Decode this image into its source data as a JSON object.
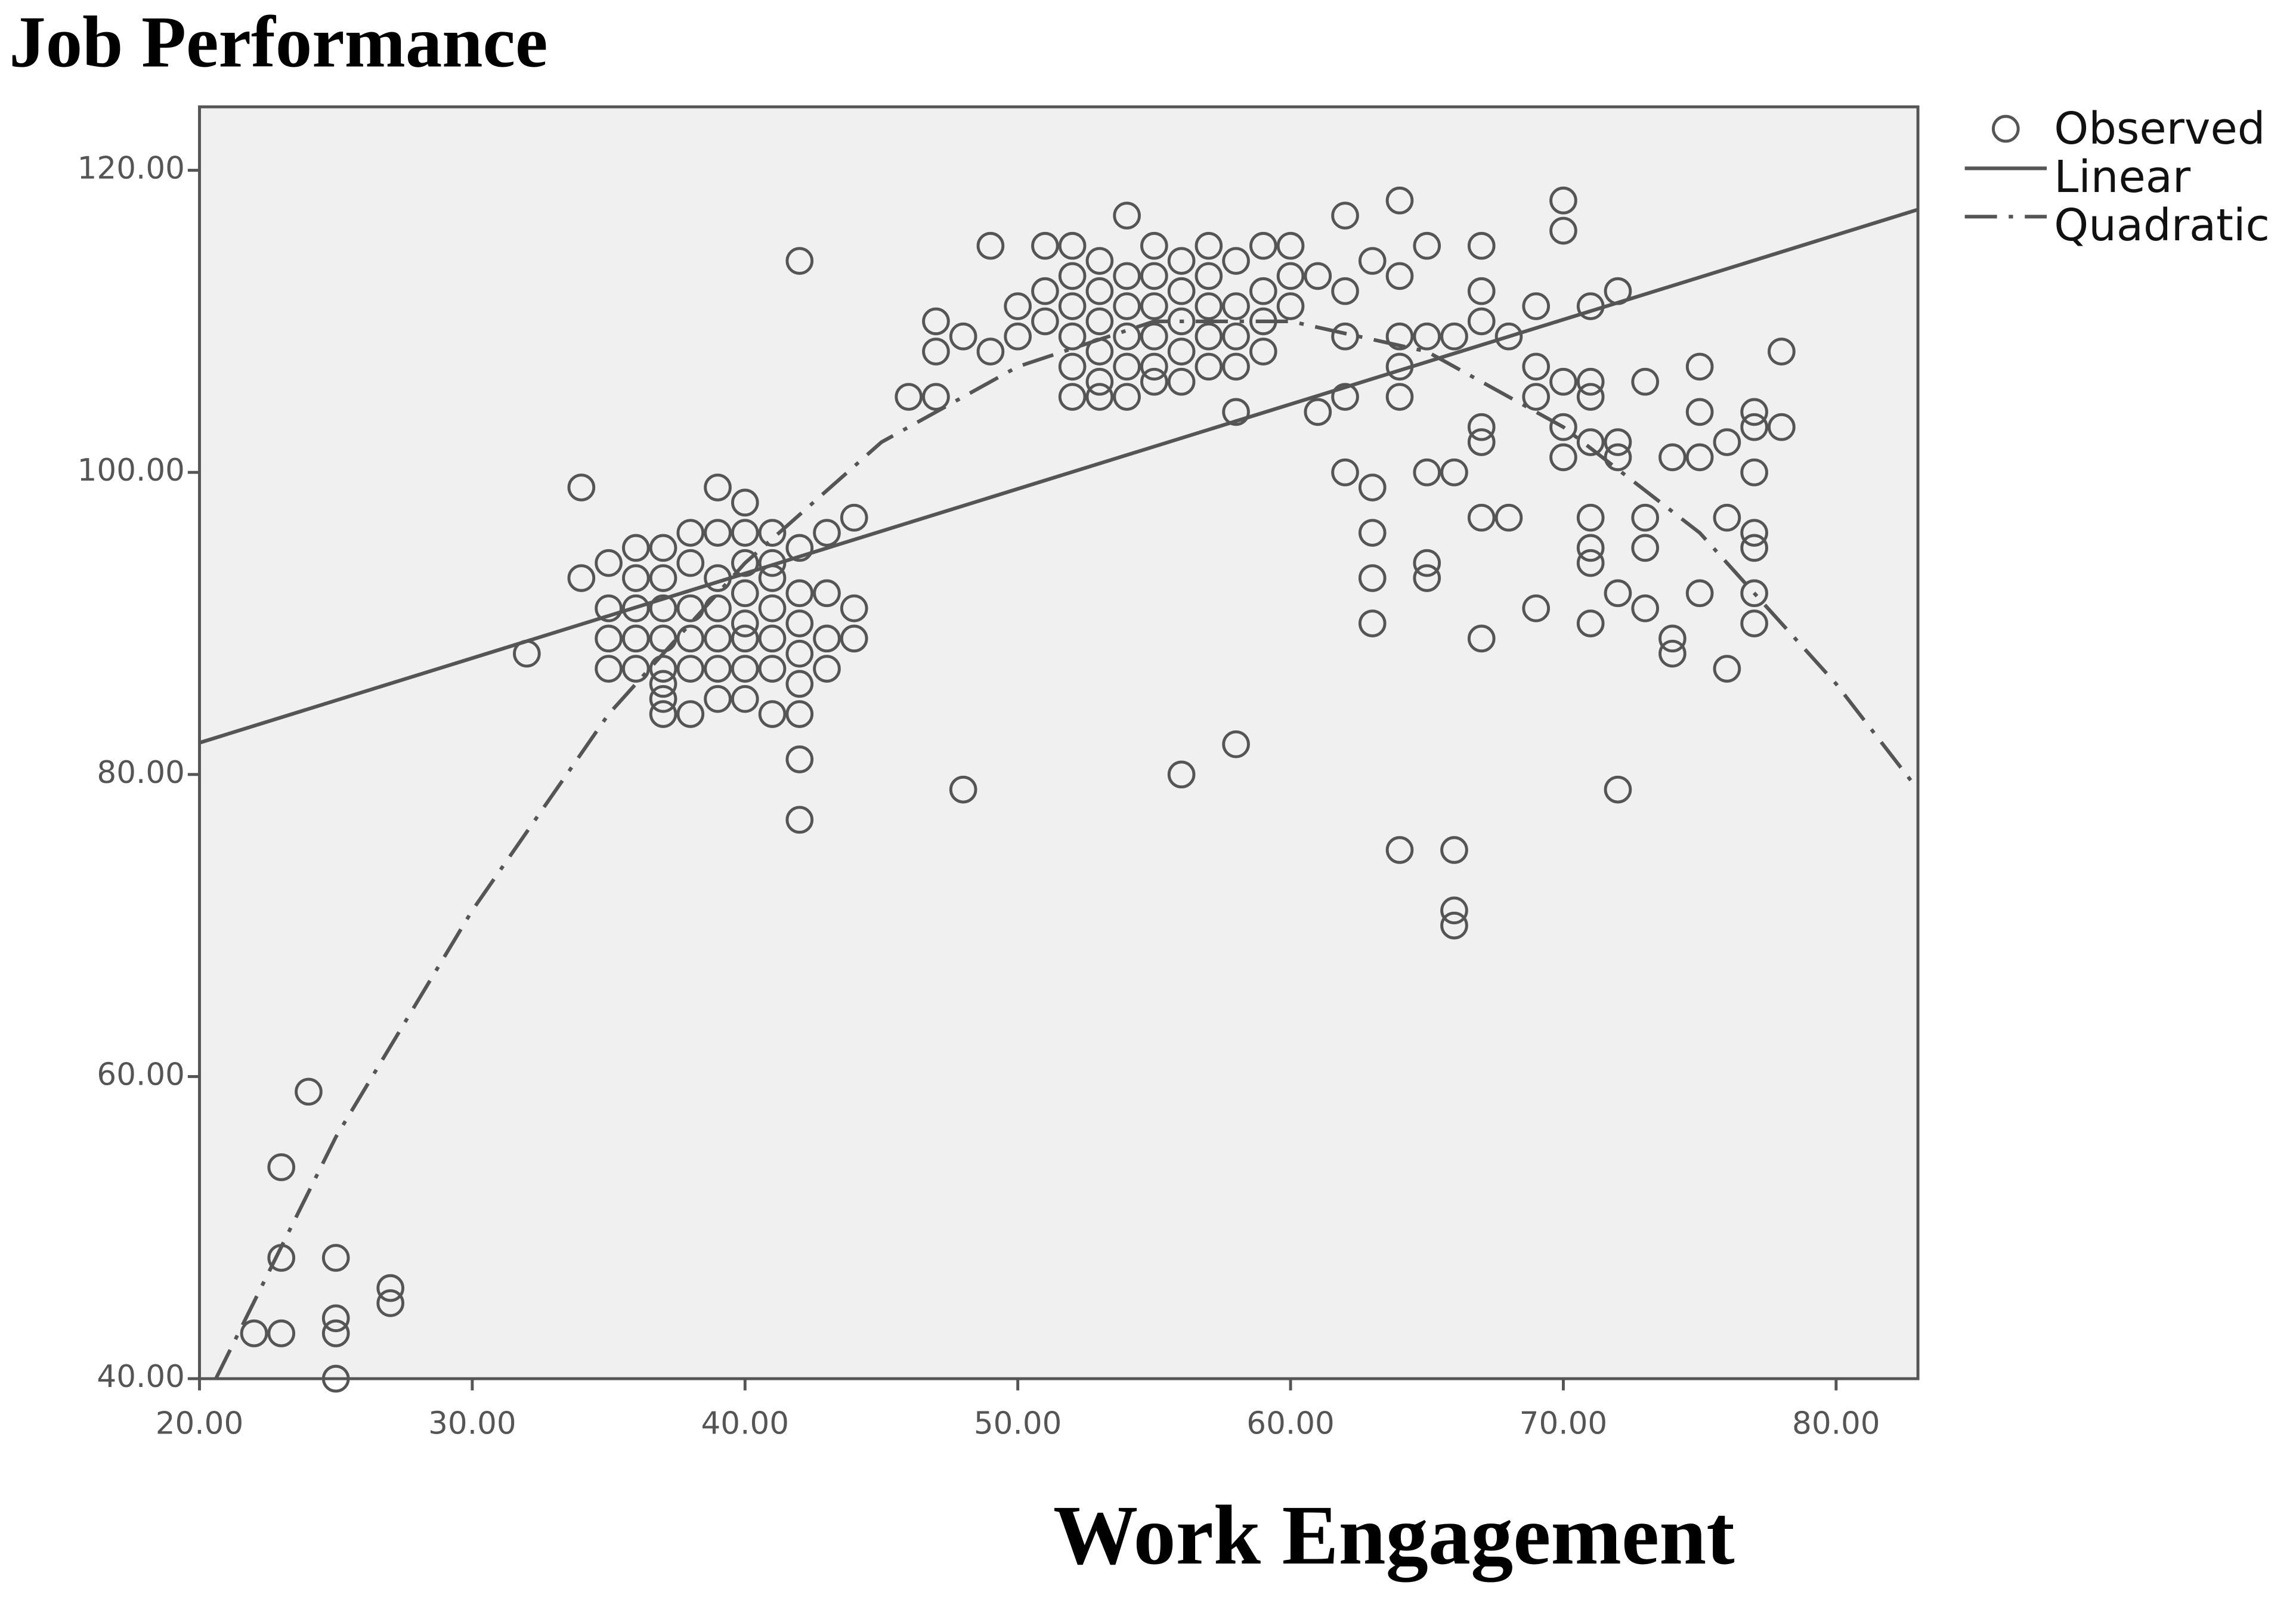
{
  "chart_data": {
    "type": "scatter",
    "title": "Job Performance",
    "x_label": "Work Engagement",
    "xlim": [
      20,
      83
    ],
    "ylim": [
      40,
      124.2
    ],
    "xticks": [
      {
        "value": 20,
        "label": "20.00"
      },
      {
        "value": 30,
        "label": "30.00"
      },
      {
        "value": 40,
        "label": "40.00"
      },
      {
        "value": 50,
        "label": "50.00"
      },
      {
        "value": 60,
        "label": "60.00"
      },
      {
        "value": 70,
        "label": "70.00"
      },
      {
        "value": 80,
        "label": "80.00"
      }
    ],
    "yticks": [
      {
        "value": 40,
        "label": "40.00"
      },
      {
        "value": 60,
        "label": "60.00"
      },
      {
        "value": 80,
        "label": "80.00"
      },
      {
        "value": 100,
        "label": "100.00"
      },
      {
        "value": 120,
        "label": "120.00"
      }
    ],
    "legend": "outside-right",
    "series": [
      {
        "name": "Observed",
        "color": "#555555",
        "style": "circle",
        "x": [
          22,
          23,
          23,
          23,
          24,
          25,
          25,
          25,
          25,
          27,
          27,
          32,
          34,
          34,
          35,
          35,
          35,
          35,
          36,
          36,
          36,
          36,
          36,
          37,
          37,
          37,
          37,
          37,
          37,
          37,
          37,
          38,
          38,
          38,
          38,
          38,
          38,
          39,
          39,
          39,
          39,
          39,
          39,
          39,
          40,
          40,
          40,
          40,
          40,
          40,
          40,
          40,
          41,
          41,
          41,
          41,
          41,
          41,
          41,
          42,
          42,
          42,
          42,
          42,
          42,
          42,
          42,
          42,
          43,
          43,
          43,
          43,
          44,
          44,
          44,
          46,
          47,
          47,
          47,
          48,
          48,
          49,
          49,
          50,
          50,
          51,
          51,
          51,
          52,
          52,
          52,
          52,
          52,
          52,
          53,
          53,
          53,
          53,
          53,
          53,
          54,
          54,
          54,
          54,
          54,
          54,
          55,
          55,
          55,
          55,
          55,
          55,
          56,
          56,
          56,
          56,
          56,
          56,
          57,
          57,
          57,
          57,
          57,
          58,
          58,
          58,
          58,
          58,
          58,
          59,
          59,
          59,
          59,
          60,
          60,
          60,
          61,
          61,
          62,
          62,
          62,
          62,
          62,
          63,
          63,
          63,
          63,
          63,
          64,
          64,
          64,
          64,
          64,
          64,
          65,
          65,
          65,
          65,
          65,
          66,
          66,
          66,
          66,
          66,
          67,
          67,
          67,
          67,
          67,
          67,
          67,
          68,
          68,
          69,
          69,
          69,
          69,
          70,
          70,
          70,
          70,
          70,
          71,
          71,
          71,
          71,
          71,
          71,
          71,
          71,
          72,
          72,
          72,
          72,
          72,
          73,
          73,
          73,
          73,
          74,
          74,
          74,
          75,
          75,
          75,
          75,
          76,
          76,
          76,
          77,
          77,
          77,
          77,
          77,
          77,
          77,
          78,
          78
        ],
        "values": [
          43,
          43,
          48,
          54,
          59,
          48,
          44,
          43,
          40,
          46,
          45,
          88,
          99,
          93,
          94,
          91,
          89,
          87,
          95,
          93,
          91,
          89,
          87,
          95,
          93,
          91,
          89,
          87,
          86,
          85,
          84,
          96,
          94,
          91,
          89,
          87,
          84,
          99,
          96,
          93,
          91,
          89,
          87,
          85,
          98,
          96,
          94,
          92,
          90,
          89,
          87,
          85,
          96,
          94,
          93,
          91,
          89,
          87,
          84,
          114,
          95,
          92,
          90,
          88,
          86,
          84,
          81,
          77,
          96,
          92,
          89,
          87,
          97,
          91,
          89,
          105,
          110,
          108,
          105,
          109,
          79,
          115,
          108,
          111,
          109,
          115,
          112,
          110,
          115,
          113,
          111,
          109,
          107,
          105,
          114,
          112,
          110,
          108,
          106,
          105,
          117,
          113,
          111,
          109,
          107,
          105,
          115,
          113,
          111,
          109,
          107,
          106,
          114,
          112,
          110,
          108,
          106,
          80,
          115,
          113,
          111,
          109,
          107,
          114,
          111,
          109,
          107,
          104,
          82,
          115,
          112,
          110,
          108,
          115,
          113,
          111,
          113,
          104,
          117,
          112,
          109,
          105,
          100,
          114,
          99,
          96,
          93,
          90,
          118,
          113,
          109,
          107,
          105,
          75,
          115,
          109,
          100,
          94,
          93,
          109,
          100,
          75,
          71,
          70,
          115,
          112,
          110,
          103,
          102,
          97,
          89,
          109,
          97,
          111,
          107,
          105,
          91,
          118,
          116,
          106,
          103,
          101,
          111,
          106,
          105,
          102,
          97,
          95,
          94,
          90,
          112,
          102,
          101,
          92,
          79,
          106,
          97,
          95,
          91,
          101,
          89,
          88,
          107,
          104,
          101,
          92,
          102,
          97,
          87,
          104,
          103,
          100,
          96,
          95,
          92,
          90,
          108,
          103
        ]
      },
      {
        "name": "Linear",
        "color": "#555555",
        "style": "solid",
        "x": [
          20,
          83
        ],
        "values": [
          82.1,
          117.4
        ]
      },
      {
        "name": "Quadratic",
        "color": "#555555",
        "style": "dashdot",
        "x": [
          20.6,
          25,
          30,
          35,
          40,
          45,
          50,
          55,
          60,
          65,
          70,
          75,
          80,
          83
        ],
        "values": [
          40,
          56,
          71,
          84,
          94,
          102,
          107,
          110,
          110,
          108,
          103,
          96,
          86,
          79
        ]
      }
    ]
  }
}
